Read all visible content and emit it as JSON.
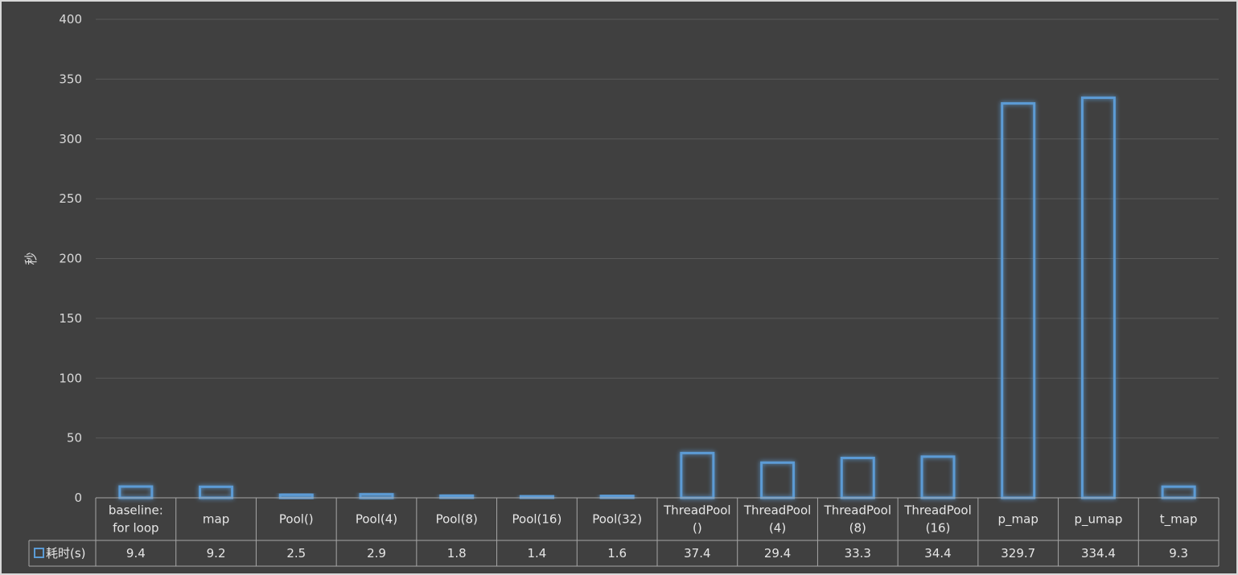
{
  "chart_data": {
    "type": "bar",
    "ylabel": "秒",
    "ylim": [
      0,
      400
    ],
    "yticks": [
      0,
      50,
      100,
      150,
      200,
      250,
      300,
      350,
      400
    ],
    "grid": true,
    "legend": "data-table",
    "categories": [
      [
        "baseline:",
        "for loop"
      ],
      [
        "map"
      ],
      [
        "Pool()"
      ],
      [
        "Pool(4)"
      ],
      [
        "Pool(8)"
      ],
      [
        "Pool(16)"
      ],
      [
        "Pool(32)"
      ],
      [
        "ThreadPool",
        "()"
      ],
      [
        "ThreadPool",
        "(4)"
      ],
      [
        "ThreadPool",
        "(8)"
      ],
      [
        "ThreadPool",
        "(16)"
      ],
      [
        "p_map"
      ],
      [
        "p_umap"
      ],
      [
        "t_map"
      ]
    ],
    "series": [
      {
        "name": "耗时(s)",
        "values": [
          9.4,
          9.2,
          2.5,
          2.9,
          1.8,
          1.4,
          1.6,
          37.4,
          29.4,
          33.3,
          34.4,
          329.7,
          334.4,
          9.3
        ],
        "value_labels": [
          "9.4",
          "9.2",
          "2.5",
          "2.9",
          "1.8",
          "1.4",
          "1.6",
          "37.4",
          "29.4",
          "33.3",
          "34.4",
          "329.7",
          "334.4",
          "9.3"
        ],
        "color": "#5b9bd5"
      }
    ]
  },
  "colors": {
    "background": "#404040",
    "gridline": "#595959",
    "table_border": "#a6a6a6",
    "bar_outline": "#5b9bd5",
    "bar_glow": "#2e75b6"
  }
}
